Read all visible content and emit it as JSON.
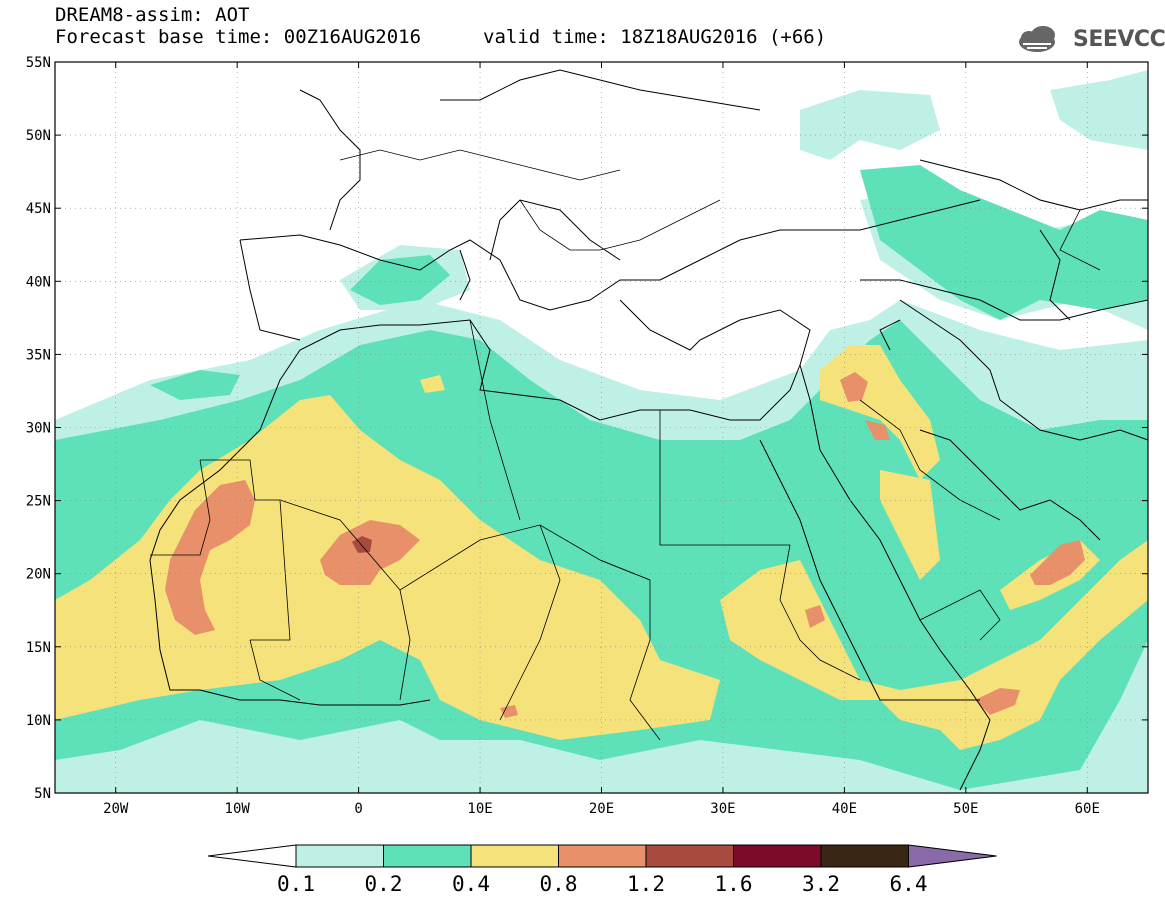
{
  "header": {
    "title": "DREAM8-assim: AOT",
    "base_time": "Forecast base time: 00Z16AUG2016",
    "valid_time": "valid time: 18Z18AUG2016 (+66)",
    "logo_text": "SEEVCCC"
  },
  "map": {
    "extent": {
      "lon": [
        -25,
        65
      ],
      "lat": [
        5,
        55
      ]
    },
    "lat_labels": [
      "55N",
      "50N",
      "45N",
      "40N",
      "35N",
      "30N",
      "25N",
      "20N",
      "15N",
      "10N",
      "5N"
    ],
    "lon_labels": [
      "20W",
      "10W",
      "0",
      "10E",
      "20E",
      "30E",
      "40E",
      "50E",
      "60E"
    ]
  },
  "colorbar": {
    "levels": [
      "0.1",
      "0.2",
      "0.4",
      "0.8",
      "1.2",
      "1.6",
      "3.2",
      "6.4"
    ],
    "colors": {
      "under": "#ffffff",
      "c1": "#bff0e6",
      "c2": "#5ee0b8",
      "c3": "#f5e27a",
      "c4": "#e8906a",
      "c5": "#a84a3e",
      "c6": "#7a0c2a",
      "c7": "#3a2614",
      "over": "#8a6aa8"
    }
  }
}
